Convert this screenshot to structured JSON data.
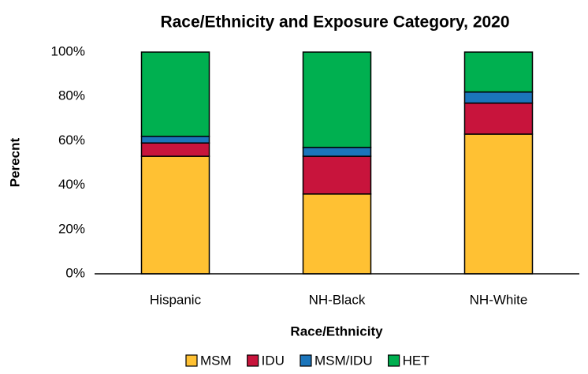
{
  "chart_data": {
    "type": "stacked_bar",
    "title": "Race/Ethnicity and Exposure Category, 2020",
    "x_label": "Race/Ethnicity",
    "y_label": "Perecnt",
    "categories": [
      "Hispanic",
      "NH-Black",
      "NH-White"
    ],
    "series": [
      {
        "name": "MSM",
        "color": "#ffc133",
        "values": [
          53,
          36,
          63
        ]
      },
      {
        "name": "IDU",
        "color": "#c8143c",
        "values": [
          6,
          17,
          14
        ]
      },
      {
        "name": "MSM/IDU",
        "color": "#1b75bb",
        "values": [
          3,
          4,
          5
        ]
      },
      {
        "name": "HET",
        "color": "#00b050",
        "values": [
          38,
          43,
          18
        ]
      }
    ],
    "ylim": [
      0,
      100
    ],
    "yticks": [
      {
        "value": 0,
        "label": "0%"
      },
      {
        "value": 20,
        "label": "20%"
      },
      {
        "value": 40,
        "label": "40%"
      },
      {
        "value": 60,
        "label": "60%"
      },
      {
        "value": 80,
        "label": "80%"
      },
      {
        "value": 100,
        "label": "100%"
      }
    ],
    "grid": false,
    "legend": "bottom"
  }
}
